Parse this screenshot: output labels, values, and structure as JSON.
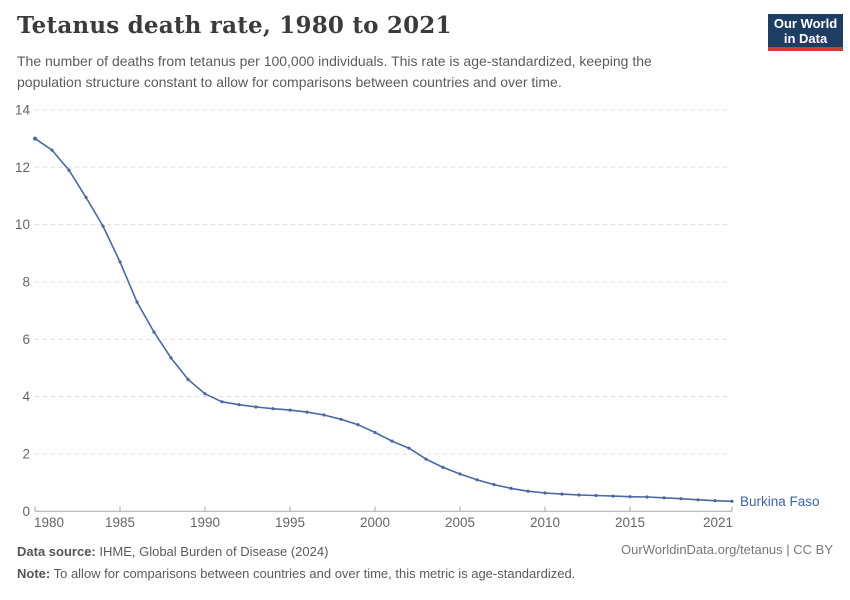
{
  "header": {
    "title": "Tetanus death rate, 1980 to 2021",
    "subtitle": "The number of deaths from tetanus per 100,000 individuals. This rate is age-standardized, keeping the population structure constant to allow for comparisons between countries and over time."
  },
  "logo": {
    "line1": "Our World",
    "line2": "in Data",
    "bg_color": "#1d3d63",
    "stripe_color": "#d13b33"
  },
  "chart_data": {
    "type": "line",
    "title": "Tetanus death rate, 1980 to 2021",
    "xlabel": "",
    "ylabel": "",
    "ylim": [
      0,
      14
    ],
    "yticks": [
      0,
      2,
      4,
      6,
      8,
      10,
      12,
      14
    ],
    "xticks": [
      1980,
      1985,
      1990,
      1995,
      2000,
      2005,
      2010,
      2015,
      2021
    ],
    "grid": "horizontal-dashed",
    "legend_position": "end-of-line-label",
    "line_color": "#4a68a5",
    "label_color": "#3d64a8",
    "gridline_color": "#dcdcdc",
    "axis_color": "#a8a8a8",
    "series": [
      {
        "name": "Burkina Faso",
        "x": [
          1980,
          1981,
          1982,
          1983,
          1984,
          1985,
          1986,
          1987,
          1988,
          1989,
          1990,
          1991,
          1992,
          1993,
          1994,
          1995,
          1996,
          1997,
          1998,
          1999,
          2000,
          2001,
          2002,
          2003,
          2004,
          2005,
          2006,
          2007,
          2008,
          2009,
          2010,
          2011,
          2012,
          2013,
          2014,
          2015,
          2016,
          2017,
          2018,
          2019,
          2020,
          2021
        ],
        "values": [
          13.0,
          12.6,
          11.9,
          10.95,
          9.95,
          8.7,
          7.3,
          6.25,
          5.35,
          4.6,
          4.1,
          3.82,
          3.72,
          3.64,
          3.58,
          3.53,
          3.46,
          3.36,
          3.21,
          3.02,
          2.75,
          2.45,
          2.2,
          1.82,
          1.53,
          1.3,
          1.1,
          0.93,
          0.8,
          0.7,
          0.64,
          0.6,
          0.57,
          0.55,
          0.53,
          0.51,
          0.5,
          0.47,
          0.44,
          0.4,
          0.37,
          0.35
        ]
      }
    ]
  },
  "footer": {
    "source_label": "Data source:",
    "source_text": " IHME, Global Burden of Disease (2024)",
    "note_label": "Note:",
    "note_text": " To allow for comparisons between countries and over time, this metric is age-standardized.",
    "attribution": "OurWorldinData.org/tetanus | CC BY"
  }
}
